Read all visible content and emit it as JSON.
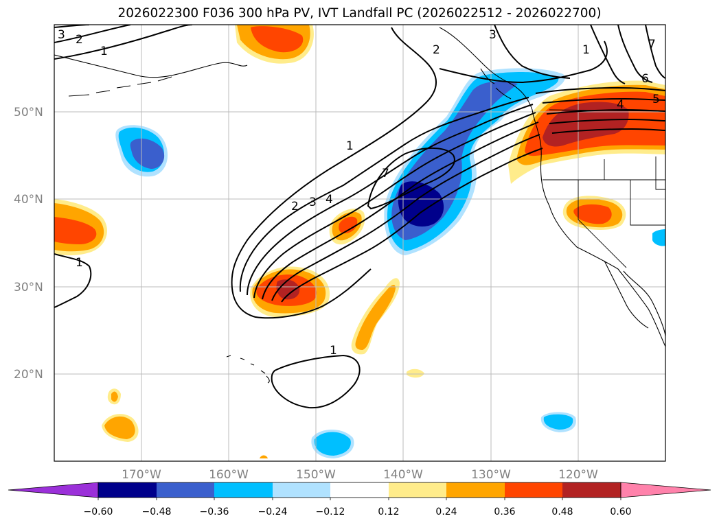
{
  "title": "2026022300 F036 300 hPa PV, IVT Landfall PC (2026022512 - 2026022700)",
  "map": {
    "lat_ticks": [
      {
        "label": "50°N",
        "value": 50
      },
      {
        "label": "40°N",
        "value": 40
      },
      {
        "label": "30°N",
        "value": 30
      },
      {
        "label": "20°N",
        "value": 20
      }
    ],
    "lon_ticks": [
      {
        "label": "170°W",
        "value": -170
      },
      {
        "label": "160°W",
        "value": -160
      },
      {
        "label": "150°W",
        "value": -150
      },
      {
        "label": "140°W",
        "value": -140
      },
      {
        "label": "130°W",
        "value": -130
      },
      {
        "label": "120°W",
        "value": -120
      }
    ],
    "lat_range": [
      10,
      60
    ],
    "lon_range": [
      -180,
      -110
    ],
    "contour_labels": [
      "3",
      "2",
      "1",
      "2",
      "3",
      "1",
      "7",
      "6",
      "5",
      "4",
      "1",
      "2",
      "3",
      "4",
      "7",
      "1",
      "1"
    ]
  },
  "colorbar": {
    "colors": [
      "#9b30d9",
      "#00008b",
      "#3a5fcd",
      "#00bfff",
      "#b0e2ff",
      "#ffffff",
      "#ffec8b",
      "#ffa500",
      "#ff4500",
      "#b22222",
      "#ff82ab"
    ],
    "labels": [
      "−0.60",
      "−0.48",
      "−0.36",
      "−0.24",
      "−0.12",
      "0.12",
      "0.24",
      "0.36",
      "0.48",
      "0.60"
    ]
  },
  "chart_data": {
    "type": "heatmap",
    "title": "2026022300 F036 300 hPa PV, IVT Landfall PC (2026022512 - 2026022700)",
    "variables": [
      "300 hPa PV (contours)",
      "IVT Landfall PC (shaded)"
    ],
    "levels": [
      -0.6,
      -0.48,
      -0.36,
      -0.24,
      -0.12,
      0.12,
      0.24,
      0.36,
      0.48,
      0.6
    ],
    "contour_levels": [
      1,
      2,
      3,
      4,
      5,
      6,
      7
    ],
    "x_range": [
      -180,
      -110
    ],
    "y_range": [
      10,
      60
    ],
    "grid": true
  }
}
